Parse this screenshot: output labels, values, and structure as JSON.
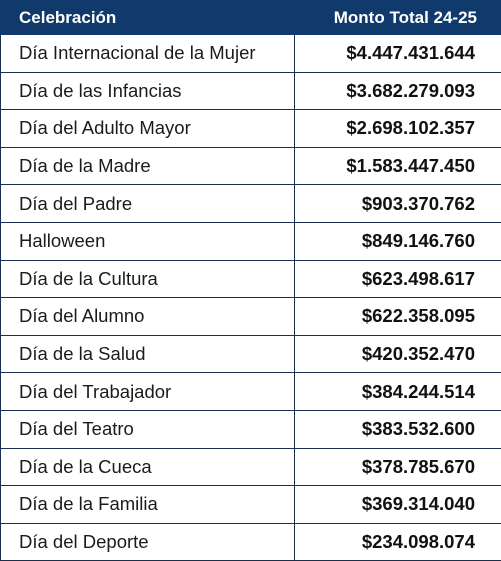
{
  "table": {
    "headers": {
      "celebration": "Celebración",
      "amount": "Monto Total 24-25"
    },
    "rows": [
      {
        "name": "Día Internacional de la Mujer",
        "amount": "$4.447.431.644"
      },
      {
        "name": "Día de las Infancias",
        "amount": "$3.682.279.093"
      },
      {
        "name": "Día del Adulto Mayor",
        "amount": "$2.698.102.357"
      },
      {
        "name": "Día de la Madre",
        "amount": "$1.583.447.450"
      },
      {
        "name": "Día del Padre",
        "amount": "$903.370.762"
      },
      {
        "name": "Halloween",
        "amount": "$849.146.760"
      },
      {
        "name": "Día de la Cultura",
        "amount": "$623.498.617"
      },
      {
        "name": "Día del Alumno",
        "amount": "$622.358.095"
      },
      {
        "name": "Día de la Salud",
        "amount": "$420.352.470"
      },
      {
        "name": "Día del Trabajador",
        "amount": "$384.244.514"
      },
      {
        "name": "Día del Teatro",
        "amount": "$383.532.600"
      },
      {
        "name": "Día de la Cueca",
        "amount": "$378.785.670"
      },
      {
        "name": "Día de la Familia",
        "amount": "$369.314.040"
      },
      {
        "name": "Día del Deporte",
        "amount": "$234.098.074"
      }
    ],
    "colors": {
      "header_background": "#0f3a6b",
      "header_text": "#ffffff",
      "border": "#1a2f4f"
    }
  }
}
